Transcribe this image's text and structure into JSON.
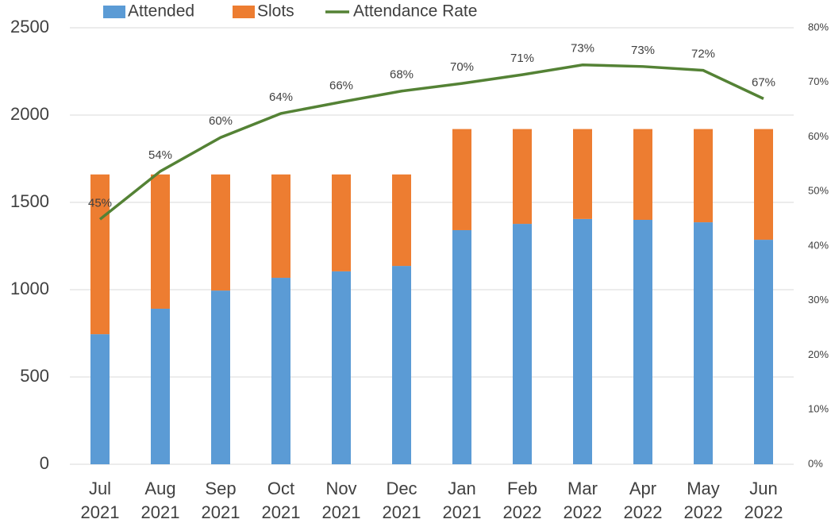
{
  "chart_data": {
    "type": "bar",
    "categories": [
      "Jul 2021",
      "Aug 2021",
      "Sep 2021",
      "Oct 2021",
      "Nov 2021",
      "Dec 2021",
      "Jan 2021",
      "Feb 2022",
      "Mar 2022",
      "Apr 2022",
      "May 2022",
      "Jun 2022"
    ],
    "series": [
      {
        "name": "Attended",
        "color": "#5b9bd5",
        "values": [
          745,
          891,
          995,
          1068,
          1105,
          1136,
          1341,
          1377,
          1405,
          1400,
          1386,
          1286
        ]
      },
      {
        "name": "Slots",
        "color": "#ed7d31",
        "values": [
          915,
          769,
          665,
          592,
          555,
          524,
          579,
          543,
          515,
          520,
          534,
          634
        ]
      },
      {
        "name": "Attendance Rate",
        "color": "#548235",
        "type": "line",
        "axis": "y2",
        "values": [
          44.9,
          53.7,
          59.9,
          64.3,
          66.4,
          68.4,
          69.8,
          71.4,
          73.2,
          72.9,
          72.2,
          67.0
        ],
        "value_labels": [
          "45%",
          "54%",
          "60%",
          "64%",
          "66%",
          "68%",
          "70%",
          "71%",
          "73%",
          "73%",
          "72%",
          "67%"
        ]
      }
    ],
    "stacked": true,
    "ylim": [
      0,
      2500
    ],
    "yticks": [
      0,
      500,
      1000,
      1500,
      2000,
      2500
    ],
    "y2lim": [
      0,
      80
    ],
    "y2ticks": [
      {
        "value": 0,
        "label": "0%"
      },
      {
        "value": 10,
        "label": "10%"
      },
      {
        "value": 20,
        "label": "20%"
      },
      {
        "value": 30,
        "label": "30%"
      },
      {
        "value": 40,
        "label": "40%"
      },
      {
        "value": 50,
        "label": "50%"
      },
      {
        "value": 60,
        "label": "60%"
      },
      {
        "value": 70,
        "label": "70%"
      },
      {
        "value": 80,
        "label": "80%"
      }
    ],
    "grid": true,
    "legend": "top"
  }
}
